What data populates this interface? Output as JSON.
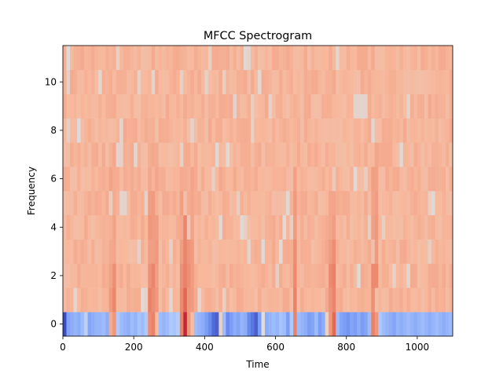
{
  "chart_data": {
    "type": "heatmap",
    "title": "MFCC Spectrogram",
    "xlabel": "Time",
    "ylabel": "Frequency",
    "xlim": [
      0,
      1100
    ],
    "ylim": [
      -0.5,
      11.5
    ],
    "x_ticks": [
      0,
      200,
      400,
      600,
      800,
      1000
    ],
    "x_tick_labels": [
      "0",
      "200",
      "400",
      "600",
      "800",
      "1000"
    ],
    "y_ticks": [
      0,
      2,
      4,
      6,
      8,
      10
    ],
    "y_tick_labels": [
      "0",
      "2",
      "4",
      "6",
      "8",
      "10"
    ],
    "grid": false,
    "colormap": "coolwarm",
    "colormap_stops": [
      "#3b4cc0",
      "#6f92f3",
      "#aac7fd",
      "#dddddd",
      "#f7b89c",
      "#e7745b",
      "#b40426"
    ],
    "n_coefficients": 12,
    "n_frames": 1100,
    "x_step": 10,
    "row_0_values": [
      -1.0,
      -0.55,
      -0.5,
      -0.45,
      -0.5,
      -0.4,
      -0.2,
      -0.55,
      -0.5,
      -0.45,
      -0.45,
      -0.4,
      -0.5,
      0.4,
      0.5,
      -0.3,
      -0.4,
      -0.45,
      -0.5,
      -0.4,
      -0.45,
      -0.35,
      -0.4,
      -0.3,
      0.55,
      0.6,
      0.3,
      -0.4,
      -0.45,
      -0.4,
      -0.3,
      -0.35,
      -0.25,
      0.6,
      0.9,
      0.5,
      0.3,
      -0.4,
      -0.45,
      -0.5,
      -0.6,
      -0.7,
      -0.85,
      -0.9,
      0.1,
      -0.4,
      -0.7,
      -0.6,
      -0.5,
      -0.55,
      -0.45,
      -0.5,
      -0.7,
      -0.8,
      -0.9,
      -0.6,
      0.0,
      -0.5,
      -0.45,
      -0.4,
      -0.45,
      -0.35,
      -0.4,
      -0.6,
      -0.3,
      0.6,
      -0.4,
      -0.45,
      -0.5,
      -0.6,
      -0.55,
      -0.4,
      -0.6,
      -0.5,
      0.1,
      0.5,
      0.7,
      -0.4,
      -0.55,
      -0.6,
      -0.65,
      -0.55,
      -0.6,
      -0.5,
      -0.6,
      -0.55,
      -0.4,
      0.6,
      0.5,
      -0.3,
      -0.4,
      -0.45,
      -0.5,
      -0.55,
      -0.45,
      -0.5,
      -0.45,
      -0.4,
      -0.45,
      -0.5,
      -0.45,
      -0.4,
      -0.45,
      -0.5,
      -0.45,
      -0.4,
      -0.45,
      -0.5,
      -0.45,
      -0.4
    ]
  }
}
